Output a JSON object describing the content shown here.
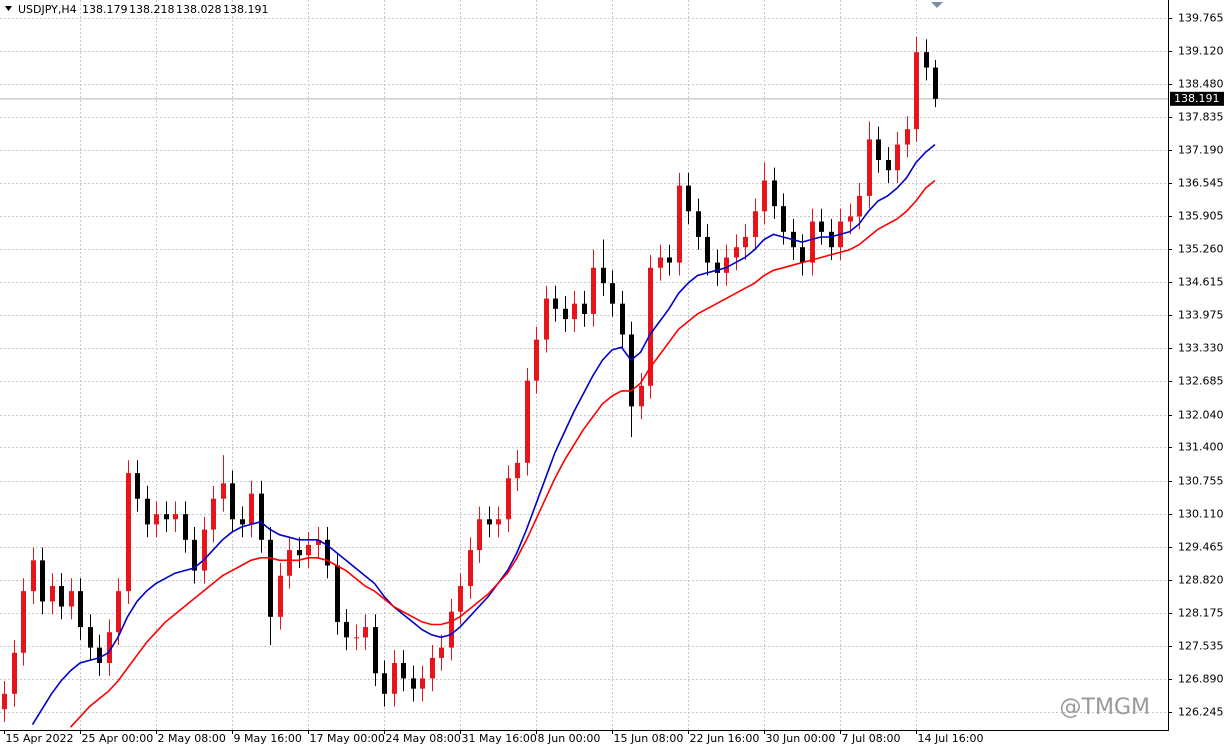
{
  "chart_data": {
    "type": "candlestick",
    "header": {
      "symbol": "USDJPY,H4",
      "ohlc": [
        138.179,
        138.218,
        138.028,
        138.191
      ]
    },
    "watermark": "@TMGM",
    "current_price": 138.191,
    "grid": true,
    "color_up": "#e8141c",
    "color_down": "#000000",
    "ylim": [
      125.895,
      140.116
    ],
    "yticks": [
      139.765,
      {
        "value": 139.12,
        "label": "139.120"
      },
      {
        "value": 138.48,
        "label": "138.480"
      },
      137.835,
      {
        "value": 137.19,
        "label": "137.190"
      },
      136.545,
      135.905,
      {
        "value": 135.26,
        "label": "135.260"
      },
      134.615,
      133.975,
      {
        "value": 133.33,
        "label": "133.330"
      },
      132.685,
      {
        "value": 132.04,
        "label": "132.040"
      },
      {
        "value": 131.4,
        "label": "131.400"
      },
      130.755,
      {
        "value": 130.11,
        "label": "130.110"
      },
      129.465,
      {
        "value": 128.82,
        "label": "128.820"
      },
      128.175,
      127.535,
      {
        "value": 126.89,
        "label": "126.890"
      },
      126.245
    ],
    "categories": [
      "15 Apr 2022",
      null,
      null,
      null,
      null,
      null,
      null,
      null,
      "25 Apr 00:00",
      null,
      null,
      null,
      null,
      null,
      null,
      null,
      "2 May 08:00",
      null,
      null,
      null,
      null,
      null,
      null,
      null,
      "9 May 16:00",
      null,
      null,
      null,
      null,
      null,
      null,
      null,
      "17 May 00:00",
      null,
      null,
      null,
      null,
      null,
      null,
      null,
      "24 May 08:00",
      null,
      null,
      null,
      null,
      null,
      null,
      null,
      "31 May 16:00",
      null,
      null,
      null,
      null,
      null,
      null,
      null,
      "8 Jun 00:00",
      null,
      null,
      null,
      null,
      null,
      null,
      null,
      "15 Jun 08:00",
      null,
      null,
      null,
      null,
      null,
      null,
      null,
      "22 Jun 16:00",
      null,
      null,
      null,
      null,
      null,
      null,
      null,
      "30 Jun 00:00",
      null,
      null,
      null,
      null,
      null,
      null,
      null,
      "7 Jul 08:00",
      null,
      null,
      null,
      null,
      null,
      null,
      null,
      "14 Jul 16:00",
      null,
      null
    ],
    "open": [
      126.3,
      126.6,
      127.4,
      128.6,
      129.2,
      128.4,
      128.7,
      128.3,
      128.6,
      127.9,
      127.5,
      127.2,
      127.8,
      128.6,
      130.9,
      130.4,
      129.9,
      130.1,
      130.0,
      130.1,
      129.6,
      129.0,
      129.8,
      130.4,
      130.7,
      130.0,
      129.9,
      130.5,
      129.6,
      128.1,
      128.9,
      129.4,
      129.3,
      129.5,
      129.6,
      129.1,
      128.0,
      127.7,
      127.7,
      127.9,
      127.0,
      126.6,
      127.2,
      126.9,
      126.7,
      126.9,
      127.3,
      127.5,
      128.2,
      128.7,
      129.4,
      130.0,
      129.9,
      130.0,
      130.8,
      131.1,
      132.7,
      133.5,
      134.3,
      134.1,
      133.9,
      134.2,
      134.0,
      134.9,
      134.6,
      134.2,
      133.6,
      132.2,
      132.6,
      134.9,
      135.1,
      135.0,
      136.5,
      136.0,
      135.5,
      135.0,
      134.8,
      135.1,
      135.3,
      135.5,
      136.0,
      136.6,
      136.1,
      135.6,
      135.3,
      135.0,
      135.8,
      135.6,
      135.3,
      135.8,
      135.9,
      136.3,
      137.4,
      137.0,
      136.8,
      137.3,
      137.6,
      139.1,
      138.8
    ],
    "high": [
      126.85,
      127.65,
      128.85,
      129.45,
      129.45,
      128.95,
      128.95,
      128.85,
      128.85,
      128.15,
      127.75,
      128.05,
      128.85,
      131.15,
      131.15,
      130.65,
      130.35,
      130.35,
      130.35,
      130.35,
      129.85,
      130.05,
      130.65,
      131.25,
      130.95,
      130.25,
      130.75,
      130.75,
      129.85,
      129.15,
      129.65,
      129.65,
      129.75,
      129.85,
      129.85,
      129.35,
      128.25,
      127.95,
      128.15,
      128.15,
      127.25,
      127.45,
      127.45,
      127.15,
      127.15,
      127.55,
      127.75,
      128.45,
      128.95,
      129.65,
      130.25,
      130.25,
      130.25,
      131.05,
      131.35,
      132.95,
      133.75,
      134.55,
      134.55,
      134.35,
      134.45,
      134.45,
      135.25,
      135.45,
      134.85,
      134.45,
      133.85,
      132.85,
      135.15,
      135.35,
      135.35,
      136.75,
      136.75,
      136.25,
      135.75,
      135.25,
      135.35,
      135.55,
      135.75,
      136.25,
      136.95,
      136.85,
      136.35,
      135.85,
      135.55,
      136.05,
      136.05,
      135.85,
      136.05,
      136.15,
      136.55,
      137.75,
      137.65,
      137.25,
      137.55,
      137.85,
      139.4,
      139.35,
      138.95
    ],
    "low": [
      126.05,
      126.35,
      127.15,
      128.35,
      128.15,
      128.15,
      128.05,
      128.05,
      127.65,
      127.25,
      126.95,
      126.95,
      127.55,
      128.35,
      130.15,
      129.65,
      129.65,
      129.75,
      129.75,
      129.35,
      128.75,
      128.75,
      129.55,
      130.15,
      129.75,
      129.65,
      129.65,
      129.35,
      127.55,
      127.85,
      128.65,
      129.05,
      129.05,
      129.25,
      128.85,
      127.75,
      127.45,
      127.45,
      127.45,
      126.75,
      126.35,
      126.35,
      126.65,
      126.45,
      126.45,
      126.65,
      127.05,
      127.25,
      127.95,
      128.45,
      129.15,
      129.65,
      129.65,
      129.75,
      130.55,
      130.85,
      132.45,
      133.25,
      133.85,
      133.65,
      133.65,
      133.75,
      133.75,
      134.35,
      133.95,
      133.35,
      131.6,
      131.95,
      132.35,
      134.65,
      134.75,
      134.75,
      135.75,
      135.25,
      134.75,
      134.55,
      134.55,
      134.85,
      135.05,
      135.25,
      135.75,
      135.85,
      135.35,
      135.05,
      134.75,
      134.75,
      135.35,
      135.05,
      135.05,
      135.55,
      135.65,
      136.05,
      136.75,
      136.55,
      136.55,
      137.05,
      137.35,
      138.55,
      138.028
    ],
    "close": [
      126.6,
      127.4,
      128.6,
      129.2,
      128.4,
      128.7,
      128.3,
      128.6,
      127.9,
      127.5,
      127.2,
      127.8,
      128.6,
      130.9,
      130.4,
      129.9,
      130.1,
      130.0,
      130.1,
      129.6,
      129.0,
      129.8,
      130.4,
      130.7,
      130.0,
      129.9,
      130.5,
      129.6,
      128.1,
      128.9,
      129.4,
      129.3,
      129.5,
      129.6,
      129.1,
      128.0,
      127.7,
      127.7,
      127.9,
      127.0,
      126.6,
      127.2,
      126.9,
      126.7,
      126.9,
      127.3,
      127.5,
      128.2,
      128.7,
      129.4,
      130.0,
      129.9,
      130.0,
      130.8,
      131.1,
      132.7,
      133.5,
      134.3,
      134.1,
      133.9,
      134.2,
      134.0,
      134.9,
      134.6,
      134.2,
      133.6,
      132.2,
      132.6,
      134.9,
      135.1,
      135.0,
      136.5,
      136.0,
      135.5,
      135.0,
      134.8,
      135.1,
      135.3,
      135.5,
      136.0,
      136.6,
      136.1,
      135.6,
      135.3,
      135.0,
      135.8,
      135.6,
      135.3,
      135.8,
      135.9,
      136.3,
      137.4,
      137.0,
      136.8,
      137.3,
      137.6,
      139.1,
      138.8,
      138.191
    ],
    "series": [
      {
        "color": "#0000cc",
        "values": [
          null,
          null,
          null,
          126.0,
          126.3,
          126.6,
          126.85,
          127.05,
          127.2,
          127.25,
          127.3,
          127.4,
          127.7,
          128.1,
          128.4,
          128.6,
          128.75,
          128.85,
          128.95,
          129.0,
          129.05,
          129.2,
          129.4,
          129.6,
          129.75,
          129.85,
          129.9,
          129.95,
          129.8,
          129.7,
          129.65,
          129.6,
          129.6,
          129.6,
          129.5,
          129.35,
          129.2,
          129.05,
          128.9,
          128.75,
          128.5,
          128.3,
          128.15,
          128.0,
          127.85,
          127.75,
          127.7,
          127.75,
          127.9,
          128.1,
          128.3,
          128.5,
          128.75,
          129.0,
          129.35,
          129.8,
          130.3,
          130.8,
          131.3,
          131.7,
          132.1,
          132.45,
          132.8,
          133.1,
          133.3,
          133.35,
          133.1,
          133.25,
          133.6,
          133.85,
          134.1,
          134.4,
          134.6,
          134.75,
          134.8,
          134.85,
          134.9,
          135.0,
          135.1,
          135.25,
          135.45,
          135.55,
          135.5,
          135.45,
          135.4,
          135.45,
          135.5,
          135.5,
          135.55,
          135.6,
          135.75,
          136.0,
          136.2,
          136.3,
          136.45,
          136.65,
          136.95,
          137.15,
          137.3
        ]
      },
      {
        "color": "#ff0000",
        "values": [
          null,
          null,
          null,
          null,
          null,
          null,
          null,
          125.95,
          126.15,
          126.35,
          126.5,
          126.65,
          126.85,
          127.1,
          127.35,
          127.6,
          127.8,
          128.0,
          128.15,
          128.3,
          128.45,
          128.6,
          128.75,
          128.9,
          129.0,
          129.1,
          129.2,
          129.25,
          129.25,
          129.2,
          129.2,
          129.2,
          129.25,
          129.25,
          129.2,
          129.1,
          129.0,
          128.85,
          128.7,
          128.6,
          128.45,
          128.3,
          128.2,
          128.1,
          128.0,
          127.95,
          127.95,
          128.0,
          128.1,
          128.25,
          128.4,
          128.55,
          128.75,
          128.95,
          129.25,
          129.6,
          130.0,
          130.4,
          130.8,
          131.15,
          131.45,
          131.75,
          132.0,
          132.25,
          132.4,
          132.5,
          132.5,
          132.65,
          132.95,
          133.2,
          133.45,
          133.7,
          133.85,
          134.0,
          134.1,
          134.2,
          134.3,
          134.4,
          134.5,
          134.6,
          134.75,
          134.85,
          134.9,
          134.95,
          135.0,
          135.05,
          135.1,
          135.15,
          135.2,
          135.25,
          135.35,
          135.5,
          135.65,
          135.75,
          135.85,
          136.0,
          136.2,
          136.45,
          136.6
        ]
      }
    ]
  }
}
